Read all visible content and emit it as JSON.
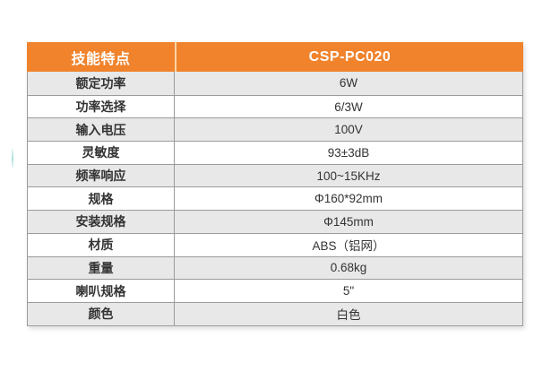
{
  "table": {
    "title_header": "技能特点",
    "model_header": "CSP-PC020",
    "rows": [
      {
        "label": "额定功率",
        "value": "6W"
      },
      {
        "label": "功率选择",
        "value": "6/3W"
      },
      {
        "label": "输入电压",
        "value": "100V"
      },
      {
        "label": "灵敏度",
        "value": "93±3dB"
      },
      {
        "label": "频率响应",
        "value": "100~15KHz"
      },
      {
        "label": "规格",
        "value": "Φ160*92mm"
      },
      {
        "label": "安装规格",
        "value": "Φ145mm"
      },
      {
        "label": "材质",
        "value": "ABS（铝网）"
      },
      {
        "label": "重量",
        "value": "0.68kg"
      },
      {
        "label": "喇叭规格",
        "value": "5\""
      },
      {
        "label": "颜色",
        "value": "白色"
      }
    ],
    "colors": {
      "header_bg": "#F0832C",
      "header_text": "#FFFFFF",
      "header_divider": "#F9D2A6",
      "row_alt_bg": "#E8E8E8",
      "row_bg": "#FFFFFF",
      "border": "#9B9B9B",
      "text": "#333333"
    }
  }
}
